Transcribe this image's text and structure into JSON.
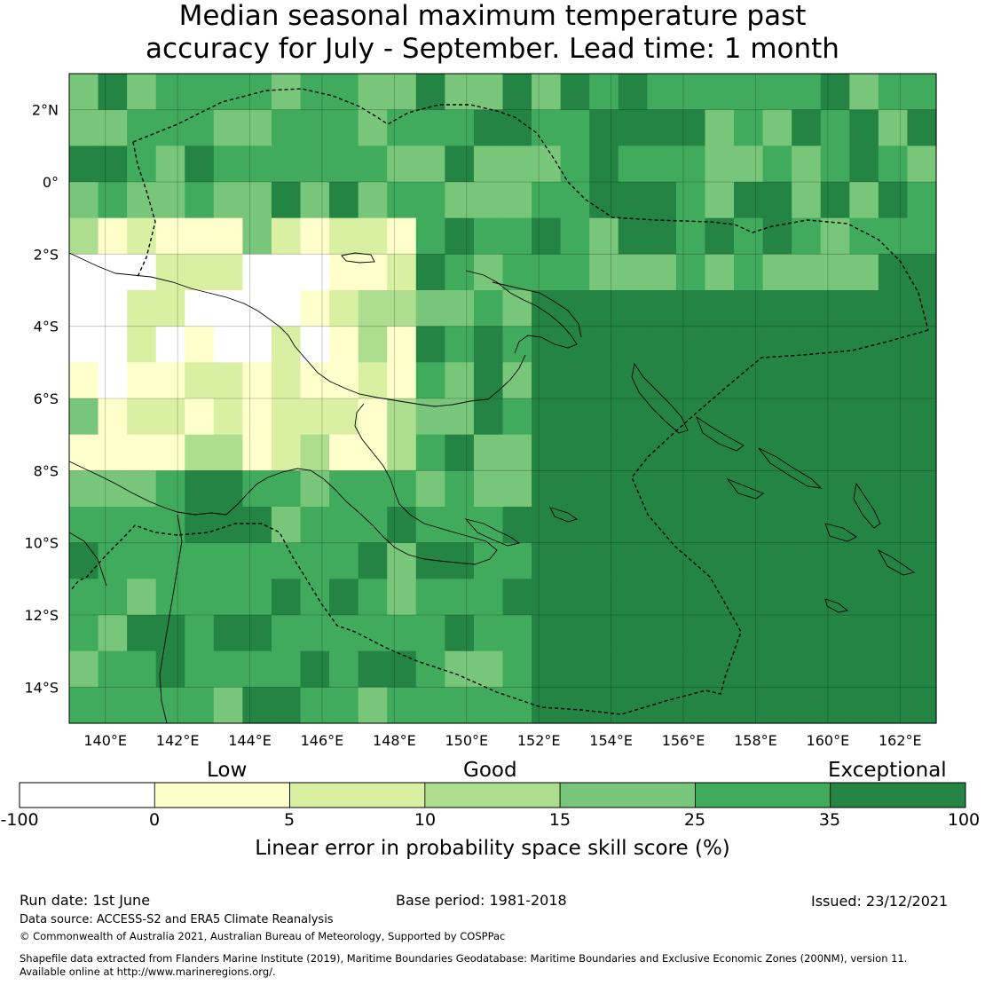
{
  "title": {
    "line1": "Median seasonal maximum temperature past",
    "line2": "accuracy for July - September. Lead time: 1 month"
  },
  "map": {
    "lat_labels": [
      "2°N",
      "0°",
      "2°S",
      "4°S",
      "6°S",
      "8°S",
      "10°S",
      "12°S",
      "14°S"
    ],
    "lon_labels": [
      "140°E",
      "142°E",
      "144°E",
      "146°E",
      "148°E",
      "150°E",
      "152°E",
      "154°E",
      "156°E",
      "158°E",
      "160°E",
      "162°E"
    ],
    "lat_range": [
      -15,
      3
    ],
    "lon_range": [
      139,
      163
    ]
  },
  "colorbar": {
    "words": [
      "Low",
      "Good",
      "Exceptional"
    ],
    "ticks": [
      "-100",
      "0",
      "5",
      "10",
      "15",
      "25",
      "35",
      "100"
    ],
    "colors": [
      "#ffffff",
      "#ffffcc",
      "#d9f0a3",
      "#addd8e",
      "#78c679",
      "#41ab5d",
      "#238443"
    ],
    "label": "Linear error in probability space skill score (%)"
  },
  "footer": {
    "run_date": "Run date: 1st June",
    "base_period": "Base period: 1981-2018",
    "issued": "Issued: 23/12/2021",
    "data_source": "Data source: ACCESS-S2 and ERA5 Climate Reanalysis",
    "copyright": "© Commonwealth of Australia 2021, Australian Bureau of Meteorology, Supported by COSPPac",
    "shapefile1": "Shapefile data extracted from Flanders Marine Institute (2019), Maritime Boundaries Geodatabase: Maritime Boundaries and Exclusive Economic Zones (200NM), version 11.",
    "shapefile2": "Available online at http://www.marineregions.org/."
  }
}
